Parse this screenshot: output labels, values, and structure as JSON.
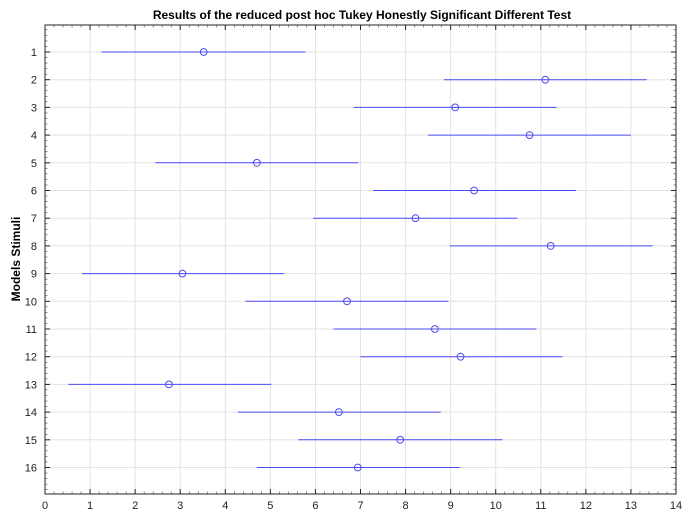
{
  "chart_data": {
    "type": "scatter",
    "title": "Results of the reduced post hoc Tukey Honestly Significant Different Test",
    "xlabel": "",
    "ylabel": "Models Stimuli",
    "xlim": [
      0,
      14
    ],
    "xticks": [
      "0",
      "1",
      "2",
      "3",
      "4",
      "5",
      "6",
      "7",
      "8",
      "9",
      "10",
      "11",
      "12",
      "13",
      "14"
    ],
    "grid": true,
    "categories": [
      "1",
      "2",
      "3",
      "4",
      "5",
      "6",
      "7",
      "8",
      "9",
      "10",
      "11",
      "12",
      "13",
      "14",
      "15",
      "16"
    ],
    "series": [
      {
        "marker": "circle",
        "color": "#4b4bf0",
        "means": [
          3.52,
          11.1,
          9.1,
          10.75,
          4.7,
          9.52,
          8.22,
          11.22,
          3.05,
          6.7,
          8.65,
          9.22,
          2.75,
          6.52,
          7.88,
          6.94
        ],
        "lower": [
          1.25,
          8.85,
          6.85,
          8.5,
          2.45,
          7.28,
          5.95,
          8.98,
          0.82,
          4.45,
          6.4,
          7.0,
          0.52,
          4.28,
          5.62,
          4.7
        ],
        "upper": [
          5.78,
          13.35,
          11.35,
          13.0,
          6.95,
          11.78,
          10.48,
          13.48,
          5.3,
          8.95,
          10.9,
          11.48,
          5.02,
          8.78,
          10.15,
          9.2
        ]
      }
    ]
  }
}
